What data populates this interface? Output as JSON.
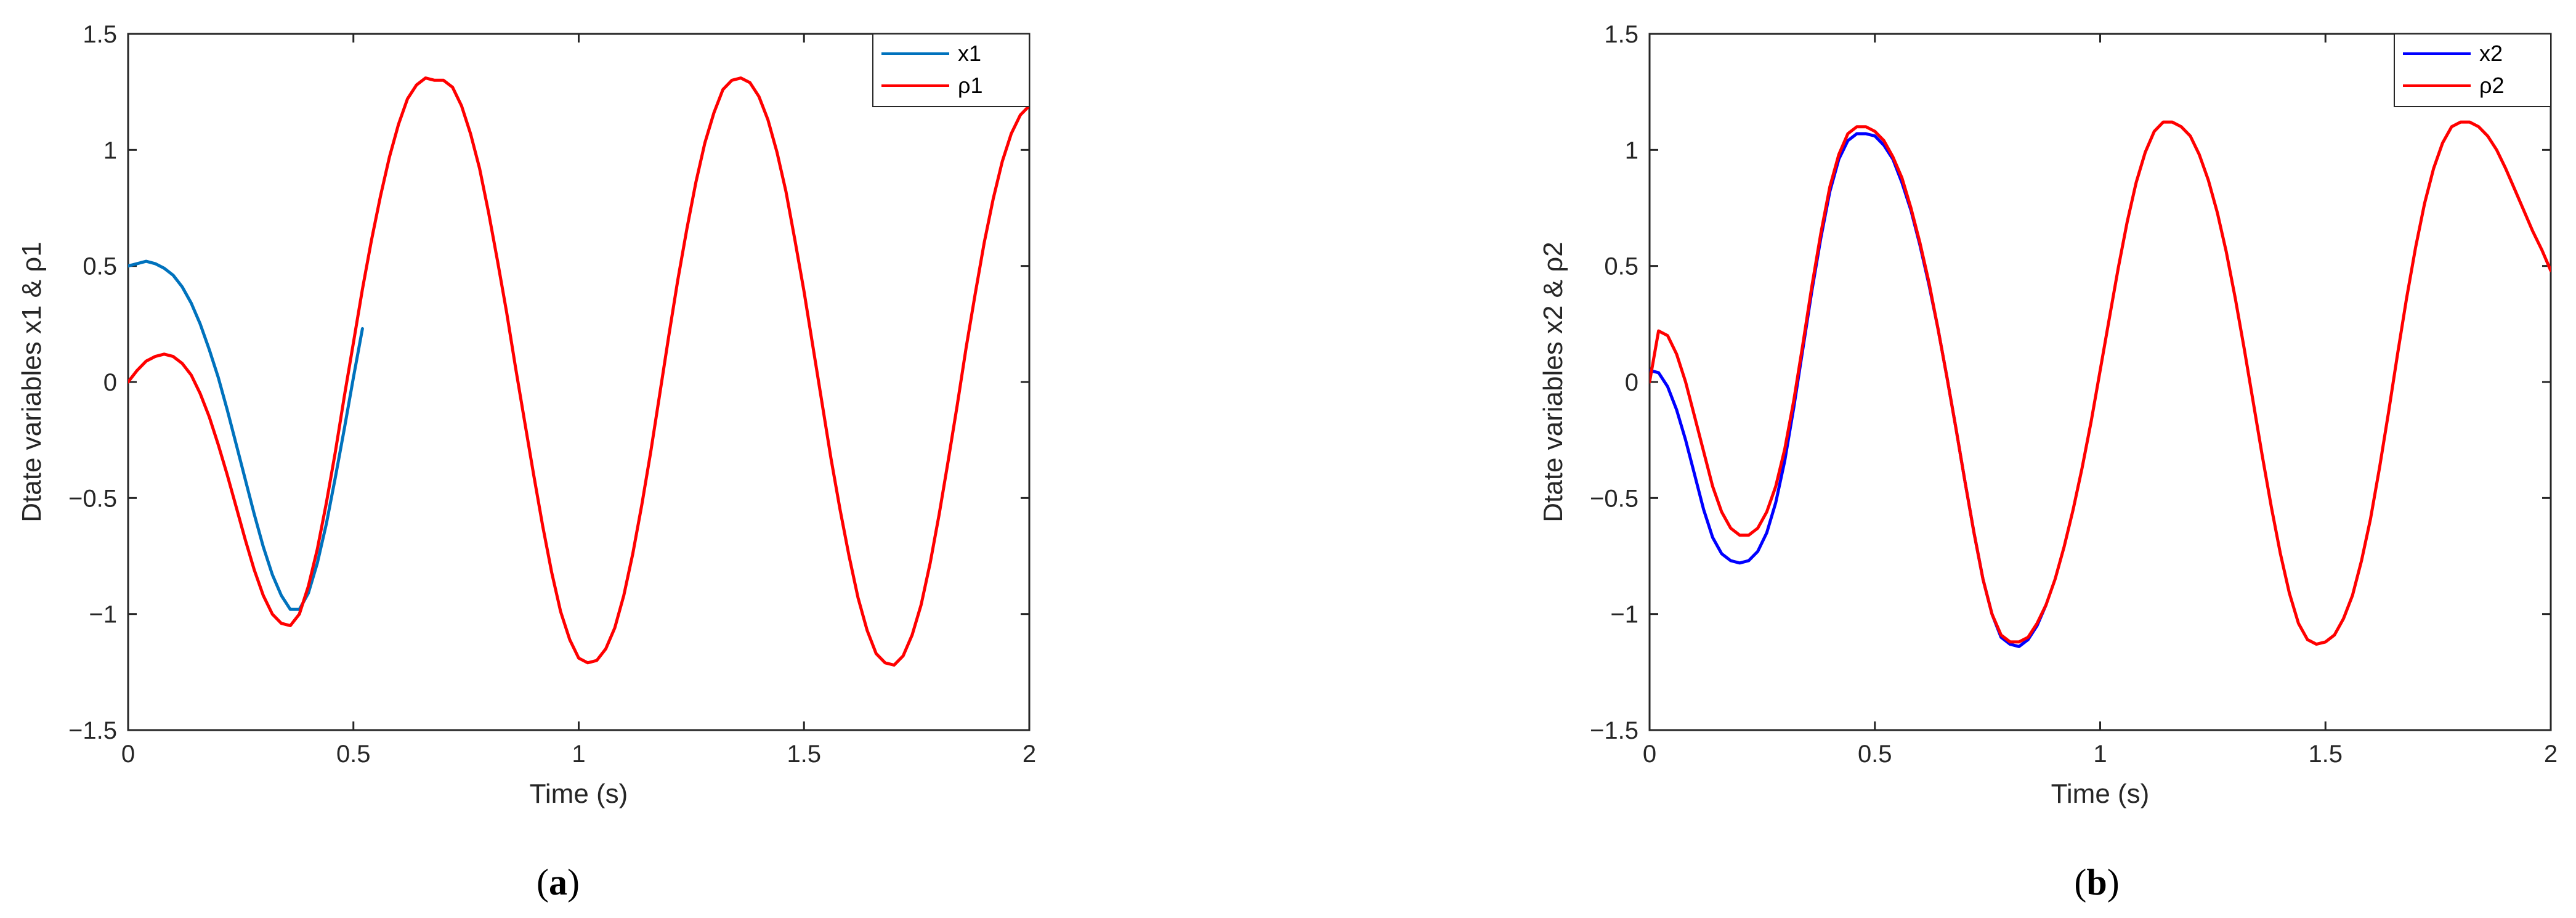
{
  "chart_data": [
    {
      "type": "line",
      "panel": "a",
      "caption": "(a)",
      "title": "",
      "xlabel": "Time (s)",
      "ylabel": "Dtate variables x1 & ρ1",
      "xlim": [
        0,
        2
      ],
      "ylim": [
        -1.5,
        1.5
      ],
      "xticks": [
        0,
        0.5,
        1,
        1.5,
        2
      ],
      "xtick_labels": [
        "0",
        "0.5",
        "1",
        "1.5",
        "2"
      ],
      "yticks": [
        -1.5,
        -1,
        -0.5,
        0,
        0.5,
        1,
        1.5
      ],
      "ytick_labels": [
        "−1.5",
        "−1",
        "−0.5",
        "0",
        "0.5",
        "1",
        "1.5"
      ],
      "grid": false,
      "legend_position": "top-right",
      "series": [
        {
          "name": "x1",
          "color": "#0072BD",
          "x": [
            0,
            0.02,
            0.04,
            0.06,
            0.08,
            0.1,
            0.12,
            0.14,
            0.16,
            0.18,
            0.2,
            0.22,
            0.24,
            0.26,
            0.28,
            0.3,
            0.32,
            0.34,
            0.36,
            0.38,
            0.4,
            0.42,
            0.44,
            0.46,
            0.48,
            0.5,
            0.52
          ],
          "y": [
            0.5,
            0.51,
            0.52,
            0.51,
            0.49,
            0.46,
            0.41,
            0.34,
            0.25,
            0.14,
            0.02,
            -0.12,
            -0.27,
            -0.42,
            -0.57,
            -0.71,
            -0.83,
            -0.92,
            -0.98,
            -0.98,
            -0.91,
            -0.78,
            -0.61,
            -0.41,
            -0.2,
            0.02,
            0.23
          ]
        },
        {
          "name": "ρ1",
          "color": "#FF0000",
          "x": [
            0,
            0.02,
            0.04,
            0.06,
            0.08,
            0.1,
            0.12,
            0.14,
            0.16,
            0.18,
            0.2,
            0.22,
            0.24,
            0.26,
            0.28,
            0.3,
            0.32,
            0.34,
            0.36,
            0.38,
            0.4,
            0.42,
            0.44,
            0.46,
            0.48,
            0.5,
            0.52,
            0.54,
            0.56,
            0.58,
            0.6,
            0.62,
            0.64,
            0.66,
            0.68,
            0.7,
            0.72,
            0.74,
            0.76,
            0.78,
            0.8,
            0.82,
            0.84,
            0.86,
            0.88,
            0.9,
            0.92,
            0.94,
            0.96,
            0.98,
            1.0,
            1.02,
            1.04,
            1.06,
            1.08,
            1.1,
            1.12,
            1.14,
            1.16,
            1.18,
            1.2,
            1.22,
            1.24,
            1.26,
            1.28,
            1.3,
            1.32,
            1.34,
            1.36,
            1.38,
            1.4,
            1.42,
            1.44,
            1.46,
            1.48,
            1.5,
            1.52,
            1.54,
            1.56,
            1.58,
            1.6,
            1.62,
            1.64,
            1.66,
            1.68,
            1.7,
            1.72,
            1.74,
            1.76,
            1.78,
            1.8,
            1.82,
            1.84,
            1.86,
            1.88,
            1.9,
            1.92,
            1.94,
            1.96,
            1.98,
            2.0
          ],
          "y": [
            0,
            0.05,
            0.09,
            0.11,
            0.12,
            0.11,
            0.08,
            0.03,
            -0.05,
            -0.15,
            -0.27,
            -0.4,
            -0.54,
            -0.68,
            -0.81,
            -0.92,
            -1.0,
            -1.04,
            -1.05,
            -1.0,
            -0.88,
            -0.72,
            -0.52,
            -0.3,
            -0.06,
            0.17,
            0.4,
            0.61,
            0.8,
            0.97,
            1.11,
            1.22,
            1.28,
            1.31,
            1.3,
            1.3,
            1.27,
            1.19,
            1.07,
            0.92,
            0.73,
            0.52,
            0.3,
            0.06,
            -0.17,
            -0.4,
            -0.62,
            -0.82,
            -0.99,
            -1.11,
            -1.19,
            -1.21,
            -1.2,
            -1.15,
            -1.06,
            -0.92,
            -0.74,
            -0.53,
            -0.3,
            -0.05,
            0.2,
            0.44,
            0.66,
            0.86,
            1.03,
            1.16,
            1.26,
            1.3,
            1.31,
            1.29,
            1.23,
            1.13,
            0.99,
            0.82,
            0.61,
            0.39,
            0.15,
            -0.09,
            -0.33,
            -0.55,
            -0.75,
            -0.93,
            -1.07,
            -1.17,
            -1.21,
            -1.22,
            -1.18,
            -1.09,
            -0.96,
            -0.78,
            -0.57,
            -0.34,
            -0.1,
            0.15,
            0.38,
            0.6,
            0.79,
            0.95,
            1.07,
            1.15,
            1.19
          ]
        }
      ]
    },
    {
      "type": "line",
      "panel": "b",
      "caption": "(b)",
      "title": "",
      "xlabel": "Time (s)",
      "ylabel": "Dtate variables x2 & ρ2",
      "xlim": [
        0,
        2
      ],
      "ylim": [
        -1.5,
        1.5
      ],
      "xticks": [
        0,
        0.5,
        1,
        1.5,
        2
      ],
      "xtick_labels": [
        "0",
        "0.5",
        "1",
        "1.5",
        "2"
      ],
      "yticks": [
        -1.5,
        -1,
        -0.5,
        0,
        0.5,
        1,
        1.5
      ],
      "ytick_labels": [
        "−1.5",
        "−1",
        "−0.5",
        "0",
        "0.5",
        "1",
        "1.5"
      ],
      "grid": false,
      "legend_position": "top-right",
      "series": [
        {
          "name": "x2",
          "color": "#0000FF",
          "x": [
            0,
            0.02,
            0.04,
            0.06,
            0.08,
            0.1,
            0.12,
            0.14,
            0.16,
            0.18,
            0.2,
            0.22,
            0.24,
            0.26,
            0.28,
            0.3,
            0.32,
            0.34,
            0.36,
            0.38,
            0.4,
            0.42,
            0.44,
            0.46,
            0.48,
            0.5,
            0.52,
            0.54,
            0.56,
            0.58,
            0.6,
            0.62,
            0.64,
            0.66,
            0.68,
            0.7,
            0.72,
            0.74,
            0.76,
            0.78,
            0.8,
            0.82,
            0.84,
            0.86,
            0.88
          ],
          "y": [
            0.05,
            0.04,
            -0.02,
            -0.12,
            -0.25,
            -0.4,
            -0.55,
            -0.67,
            -0.74,
            -0.77,
            -0.78,
            -0.77,
            -0.73,
            -0.65,
            -0.52,
            -0.34,
            -0.11,
            0.14,
            0.39,
            0.62,
            0.82,
            0.96,
            1.04,
            1.07,
            1.07,
            1.06,
            1.02,
            0.96,
            0.86,
            0.74,
            0.59,
            0.42,
            0.23,
            0.02,
            -0.2,
            -0.43,
            -0.65,
            -0.85,
            -1.0,
            -1.1,
            -1.13,
            -1.14,
            -1.11,
            -1.05,
            -0.96
          ]
        },
        {
          "name": "ρ2",
          "color": "#FF0000",
          "x": [
            0,
            0.02,
            0.04,
            0.06,
            0.08,
            0.1,
            0.12,
            0.14,
            0.16,
            0.18,
            0.2,
            0.22,
            0.24,
            0.26,
            0.28,
            0.3,
            0.32,
            0.34,
            0.36,
            0.38,
            0.4,
            0.42,
            0.44,
            0.46,
            0.48,
            0.5,
            0.52,
            0.54,
            0.56,
            0.58,
            0.6,
            0.62,
            0.64,
            0.66,
            0.68,
            0.7,
            0.72,
            0.74,
            0.76,
            0.78,
            0.8,
            0.82,
            0.84,
            0.86,
            0.88,
            0.9,
            0.92,
            0.94,
            0.96,
            0.98,
            1.0,
            1.02,
            1.04,
            1.06,
            1.08,
            1.1,
            1.12,
            1.14,
            1.16,
            1.18,
            1.2,
            1.22,
            1.24,
            1.26,
            1.28,
            1.3,
            1.32,
            1.34,
            1.36,
            1.38,
            1.4,
            1.42,
            1.44,
            1.46,
            1.48,
            1.5,
            1.52,
            1.54,
            1.56,
            1.58,
            1.6,
            1.62,
            1.64,
            1.66,
            1.68,
            1.7,
            1.72,
            1.74,
            1.76,
            1.78,
            1.8,
            1.82,
            1.84,
            1.86,
            1.88,
            1.9,
            1.92,
            1.94,
            1.96,
            1.98,
            2.0
          ],
          "y": [
            0,
            0.22,
            0.2,
            0.12,
            0.0,
            -0.15,
            -0.3,
            -0.45,
            -0.56,
            -0.63,
            -0.66,
            -0.66,
            -0.63,
            -0.56,
            -0.45,
            -0.29,
            -0.08,
            0.16,
            0.41,
            0.64,
            0.84,
            0.98,
            1.07,
            1.1,
            1.1,
            1.08,
            1.04,
            0.97,
            0.88,
            0.75,
            0.6,
            0.43,
            0.23,
            0.02,
            -0.2,
            -0.43,
            -0.65,
            -0.85,
            -1.0,
            -1.09,
            -1.12,
            -1.12,
            -1.1,
            -1.04,
            -0.96,
            -0.85,
            -0.71,
            -0.55,
            -0.37,
            -0.17,
            0.05,
            0.27,
            0.49,
            0.69,
            0.86,
            0.99,
            1.08,
            1.12,
            1.12,
            1.1,
            1.06,
            0.98,
            0.87,
            0.73,
            0.56,
            0.36,
            0.14,
            -0.09,
            -0.32,
            -0.54,
            -0.74,
            -0.91,
            -1.04,
            -1.11,
            -1.13,
            -1.12,
            -1.09,
            -1.02,
            -0.92,
            -0.77,
            -0.59,
            -0.37,
            -0.13,
            0.12,
            0.36,
            0.58,
            0.77,
            0.92,
            1.03,
            1.1,
            1.12,
            1.12,
            1.1,
            1.06,
            1.0,
            0.92,
            0.83,
            0.74,
            0.65,
            0.57,
            0.48
          ]
        }
      ]
    }
  ]
}
